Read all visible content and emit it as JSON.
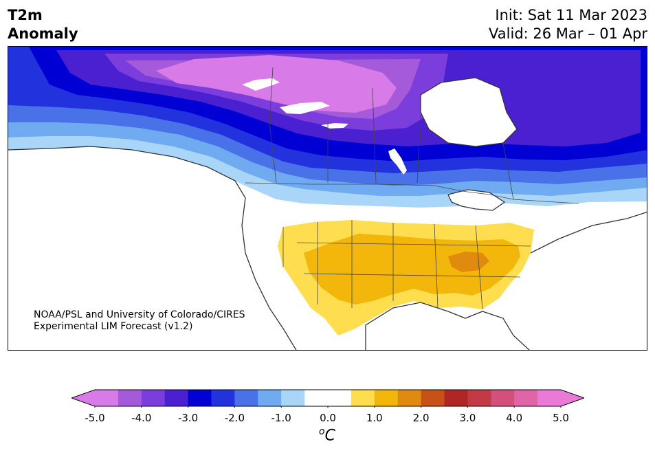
{
  "title": {
    "variable_line1": "T2m",
    "variable_line2": "Anomaly",
    "init": "Init: Sat 11 Mar 2023",
    "valid": "Valid: 26 Mar – 01 Apr"
  },
  "credit": {
    "line1": "NOAA/PSL and University of Colorado/CIRES",
    "line2": "Experimental LIM Forecast (v1.2)"
  },
  "colorbar": {
    "unit_superscript": "o",
    "unit_main": "C",
    "ticks": [
      {
        "value": -5.0,
        "label": "-5.0"
      },
      {
        "value": -4.0,
        "label": "-4.0"
      },
      {
        "value": -3.0,
        "label": "-3.0"
      },
      {
        "value": -2.0,
        "label": "-2.0"
      },
      {
        "value": -1.0,
        "label": "-1.0"
      },
      {
        "value": 0.0,
        "label": "0.0"
      },
      {
        "value": 1.0,
        "label": "1.0"
      },
      {
        "value": 2.0,
        "label": "2.0"
      },
      {
        "value": 3.0,
        "label": "3.0"
      },
      {
        "value": 4.0,
        "label": "4.0"
      },
      {
        "value": 5.0,
        "label": "5.0"
      }
    ],
    "colors": [
      "#d97ae9",
      "#a55ad9",
      "#7b3ddb",
      "#4a20d0",
      "#0000d4",
      "#2233dd",
      "#4a72e8",
      "#70aaf0",
      "#a9d6f8",
      "#ffffff",
      "#ffffff",
      "#fede4f",
      "#f3b60a",
      "#e08a10",
      "#c85117",
      "#b02525",
      "#c23a45",
      "#d25079",
      "#df65a8",
      "#ea7ad6"
    ],
    "under_color": "#d97ae9",
    "over_color": "#ea7ad6"
  }
}
